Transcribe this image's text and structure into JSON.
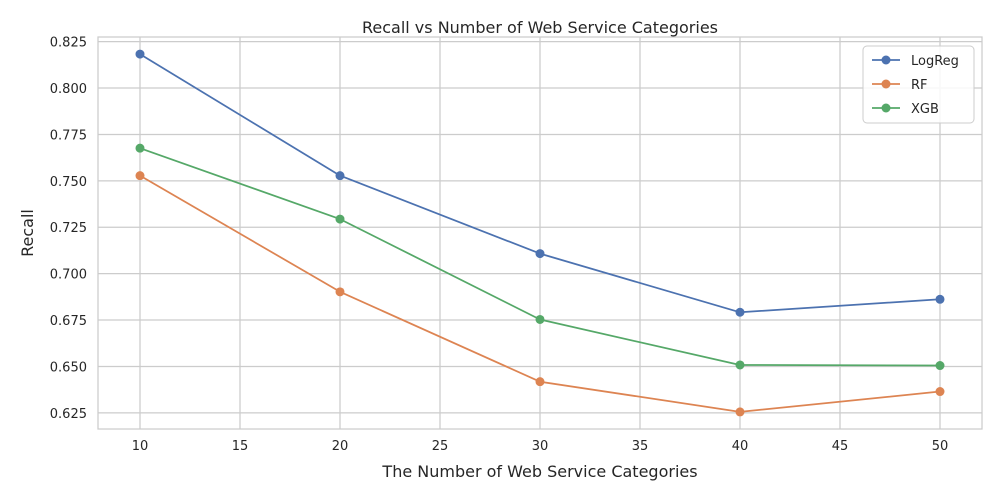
{
  "chart_data": {
    "type": "line",
    "title": "Recall vs Number of Web Service Categories",
    "xlabel": "The Number of Web Service Categories",
    "ylabel": "Recall",
    "x": [
      10,
      20,
      30,
      40,
      50
    ],
    "xlim": [
      7.9,
      52.1
    ],
    "ylim": [
      0.6163,
      0.8275
    ],
    "xticks": [
      10,
      15,
      20,
      25,
      30,
      35,
      40,
      45,
      50
    ],
    "yticks": [
      0.625,
      0.65,
      0.675,
      0.7,
      0.725,
      0.75,
      0.775,
      0.8,
      0.825
    ],
    "xtick_labels": [
      "10",
      "15",
      "20",
      "25",
      "30",
      "35",
      "40",
      "45",
      "50"
    ],
    "ytick_labels": [
      "0.625",
      "0.650",
      "0.675",
      "0.700",
      "0.725",
      "0.750",
      "0.775",
      "0.800",
      "0.825"
    ],
    "grid": true,
    "legend_position": "top-right",
    "series": [
      {
        "name": "LogReg",
        "color": "#4c72b0",
        "values": [
          0.8183,
          0.7528,
          0.7108,
          0.6792,
          0.6862
        ]
      },
      {
        "name": "RF",
        "color": "#dd8452",
        "values": [
          0.7528,
          0.6902,
          0.6418,
          0.6255,
          0.6365
        ]
      },
      {
        "name": "XGB",
        "color": "#55a868",
        "values": [
          0.7676,
          0.7294,
          0.6753,
          0.6508,
          0.6505
        ]
      }
    ]
  }
}
